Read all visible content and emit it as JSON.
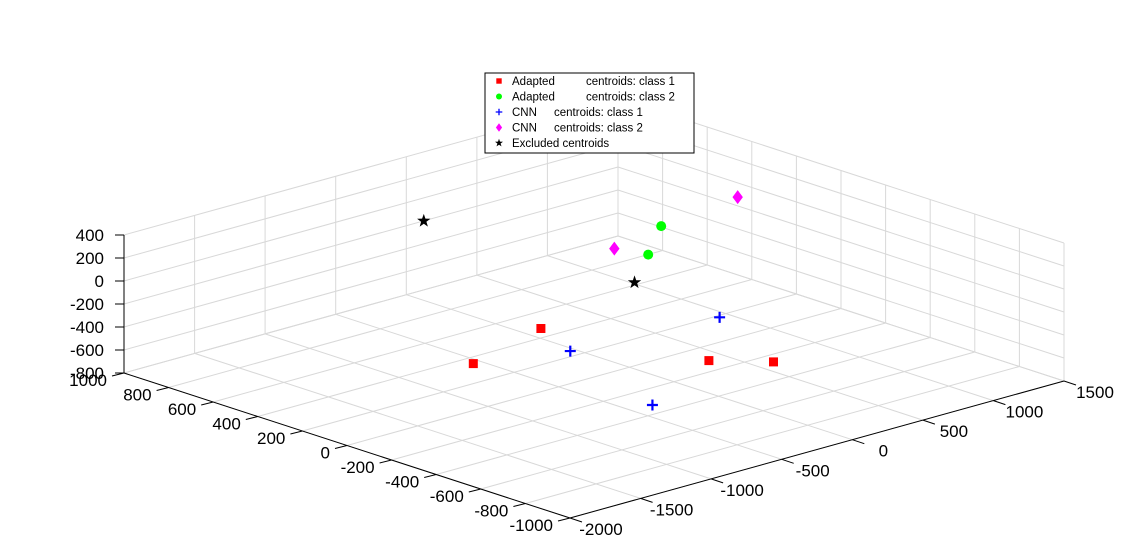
{
  "chart_data": {
    "type": "scatter",
    "projection": "3d",
    "grid": true,
    "legend_position": "top-center",
    "axes": {
      "x": {
        "ticks": [
          "-2000",
          "-1500",
          "-1000",
          "-500",
          "0",
          "500",
          "1000",
          "1500"
        ],
        "range": [
          -2000,
          1500
        ]
      },
      "y": {
        "ticks": [
          "1000",
          "800",
          "600",
          "400",
          "200",
          "0",
          "-200",
          "-400",
          "-600",
          "-800",
          "-1000"
        ],
        "range": [
          -1000,
          1000
        ]
      },
      "z": {
        "ticks": [
          "400",
          "200",
          "0",
          "-200",
          "-400",
          "-600",
          "-800"
        ],
        "range": [
          -800,
          400
        ]
      }
    },
    "series": [
      {
        "name": "Adapted centroids: class 1",
        "legend_prefix": "Adapted",
        "legend_suffix": "centroids: class 1",
        "marker": "square",
        "color": "#ff0000",
        "points": [
          [
            -1100,
            -300,
            100
          ],
          [
            -1500,
            -250,
            -100
          ],
          [
            -400,
            -900,
            -50
          ],
          [
            -700,
            -800,
            0
          ]
        ]
      },
      {
        "name": "Adapted centroids: class 2",
        "legend_prefix": "Adapted",
        "legend_suffix": "centroids: class 2",
        "marker": "circle",
        "color": "#00ff00",
        "points": [
          [
            700,
            300,
            0
          ],
          [
            450,
            200,
            -100
          ]
        ]
      },
      {
        "name": "CNN centroids: class 1",
        "legend_prefix": "CNN",
        "legend_suffix": "centroids: class 1",
        "marker": "plus",
        "color": "#0000ff",
        "points": [
          [
            -1050,
            -400,
            -50
          ],
          [
            -150,
            -500,
            0
          ],
          [
            -1100,
            -800,
            -250
          ]
        ]
      },
      {
        "name": "CNN centroids: class 2",
        "legend_prefix": "CNN",
        "legend_suffix": "centroids: class 2",
        "marker": "diamond",
        "color": "#ff00ff",
        "points": [
          [
            1400,
            400,
            -50
          ],
          [
            1500,
            1000,
            100
          ],
          [
            1000,
            700,
            -550
          ]
        ]
      },
      {
        "name": "Excluded centroids",
        "legend_prefix": "Excluded centroids",
        "legend_suffix": "",
        "marker": "star",
        "color": "#000000",
        "points": [
          [
            -200,
            -150,
            100
          ],
          [
            -350,
            700,
            150
          ]
        ]
      }
    ]
  }
}
